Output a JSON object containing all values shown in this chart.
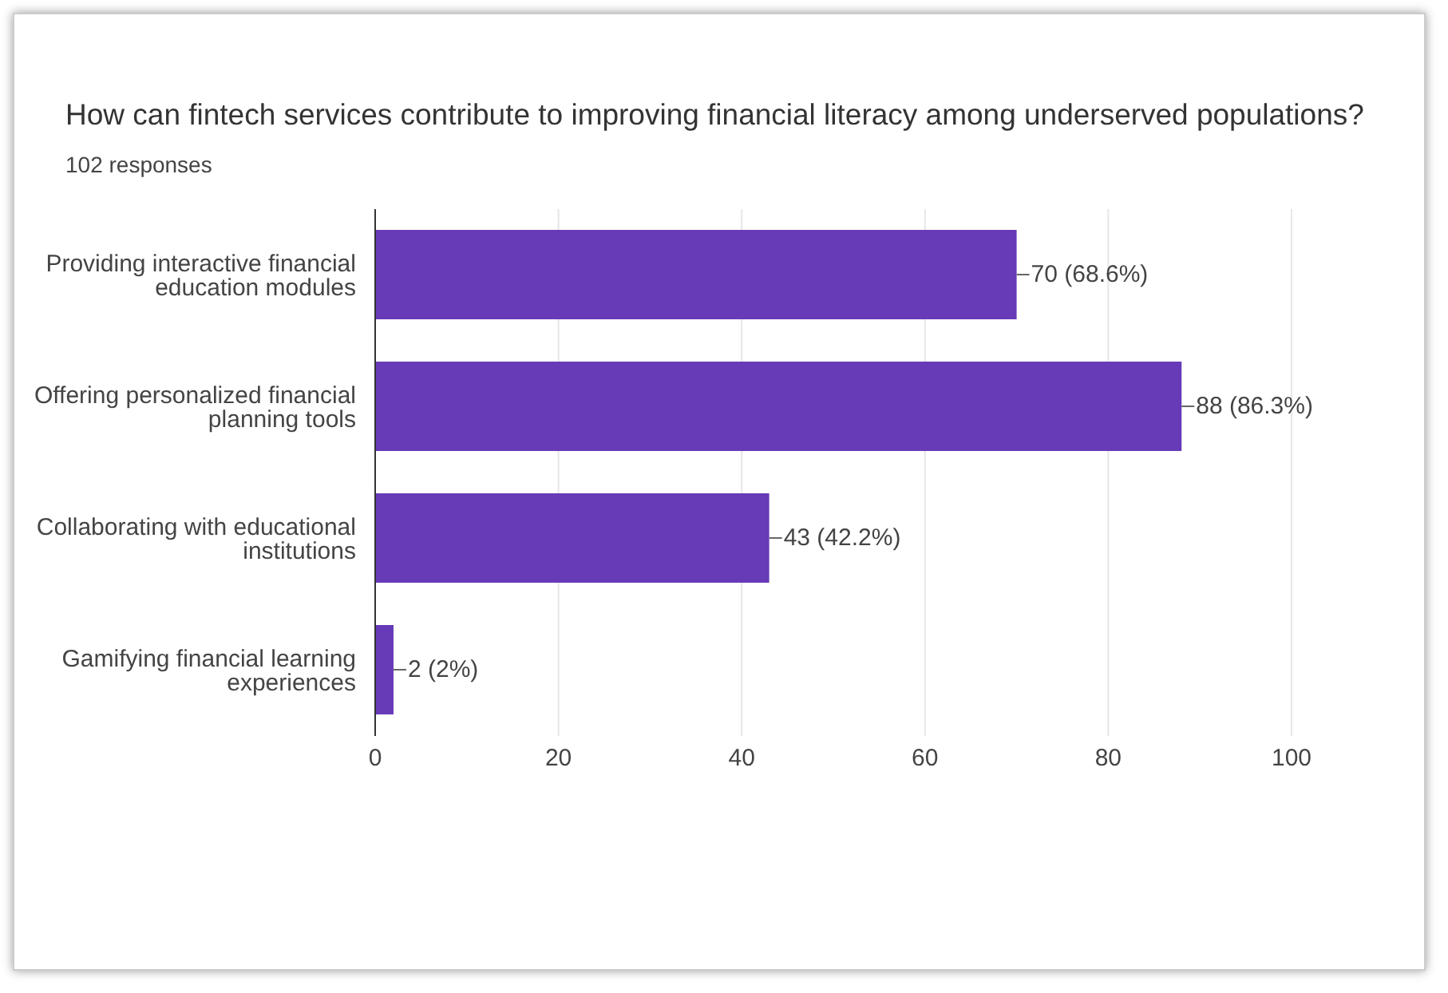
{
  "chart_data": {
    "type": "bar",
    "orientation": "horizontal",
    "title": "How can fintech services contribute to improving financial literacy among underserved populations?",
    "subtitle": "102 responses",
    "categories": [
      "Providing interactive financial education modules",
      "Offering personalized financial planning tools",
      "Collaborating with educational institutions",
      "Gamifying financial learning experiences"
    ],
    "values": [
      70,
      88,
      43,
      2
    ],
    "value_labels": [
      "70 (68.6%)",
      "88 (86.3%)",
      "43 (42.2%)",
      "2 (2%)"
    ],
    "color": "#673ab7",
    "xlim": [
      0,
      100
    ],
    "xticks": [
      0,
      20,
      40,
      60,
      80,
      100
    ],
    "grid": "x"
  }
}
